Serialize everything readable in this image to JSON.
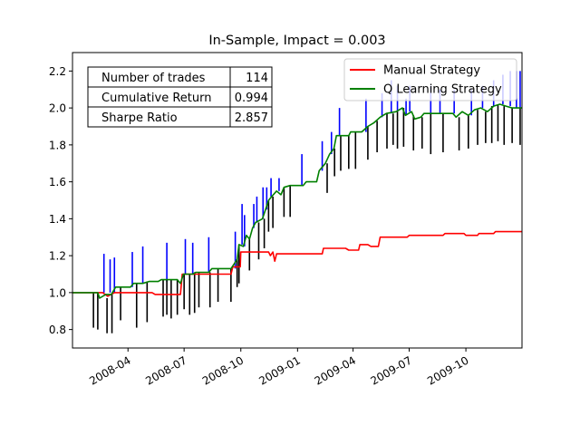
{
  "chart_data": {
    "type": "line",
    "title": "In-Sample, Impact = 0.003",
    "xlabel": "",
    "ylabel": "",
    "x_ticks": [
      "2008-04",
      "2008-07",
      "2008-10",
      "2009-01",
      "2009-04",
      "2009-07",
      "2009-10"
    ],
    "y_ticks": [
      "0.8",
      "1.0",
      "1.2",
      "1.4",
      "1.6",
      "1.8",
      "2.0",
      "2.2"
    ],
    "xlim": [
      "2008-01-02",
      "2009-12-31"
    ],
    "ylim": [
      0.7,
      2.3
    ],
    "grid": false,
    "legend_position": "upper right",
    "series": [
      {
        "name": "Manual Strategy",
        "color": "#ff0000",
        "points": [
          [
            "2008-01-02",
            1.0
          ],
          [
            "2008-02-20",
            1.0
          ],
          [
            "2008-02-28",
            0.98
          ],
          [
            "2008-03-10",
            1.0
          ],
          [
            "2008-05-10",
            1.0
          ],
          [
            "2008-05-15",
            0.99
          ],
          [
            "2008-06-25",
            0.99
          ],
          [
            "2008-06-28",
            1.1
          ],
          [
            "2008-09-15",
            1.1
          ],
          [
            "2008-09-18",
            1.14
          ],
          [
            "2008-09-30",
            1.14
          ],
          [
            "2008-10-01",
            1.22
          ],
          [
            "2008-11-15",
            1.22
          ],
          [
            "2008-11-18",
            1.2
          ],
          [
            "2008-11-22",
            1.22
          ],
          [
            "2008-11-25",
            1.17
          ],
          [
            "2008-11-28",
            1.21
          ],
          [
            "2009-02-10",
            1.21
          ],
          [
            "2009-02-12",
            1.24
          ],
          [
            "2009-03-20",
            1.24
          ],
          [
            "2009-03-25",
            1.23
          ],
          [
            "2009-04-10",
            1.23
          ],
          [
            "2009-04-12",
            1.26
          ],
          [
            "2009-04-25",
            1.26
          ],
          [
            "2009-04-30",
            1.25
          ],
          [
            "2009-05-12",
            1.25
          ],
          [
            "2009-05-15",
            1.3
          ],
          [
            "2009-06-28",
            1.3
          ],
          [
            "2009-07-01",
            1.31
          ],
          [
            "2009-08-25",
            1.31
          ],
          [
            "2009-08-28",
            1.32
          ],
          [
            "2009-09-28",
            1.32
          ],
          [
            "2009-10-01",
            1.31
          ],
          [
            "2009-10-20",
            1.31
          ],
          [
            "2009-10-22",
            1.32
          ],
          [
            "2009-11-15",
            1.32
          ],
          [
            "2009-11-18",
            1.33
          ],
          [
            "2009-12-31",
            1.33
          ]
        ]
      },
      {
        "name": "Q Learning Strategy",
        "color": "#008000",
        "points": [
          [
            "2008-01-02",
            1.0
          ],
          [
            "2008-02-12",
            1.0
          ],
          [
            "2008-02-15",
            0.97
          ],
          [
            "2008-02-25",
            0.99
          ],
          [
            "2008-03-05",
            0.99
          ],
          [
            "2008-03-12",
            1.03
          ],
          [
            "2008-04-05",
            1.03
          ],
          [
            "2008-04-10",
            1.05
          ],
          [
            "2008-04-25",
            1.05
          ],
          [
            "2008-05-05",
            1.06
          ],
          [
            "2008-05-20",
            1.06
          ],
          [
            "2008-05-25",
            1.07
          ],
          [
            "2008-06-20",
            1.07
          ],
          [
            "2008-06-25",
            1.05
          ],
          [
            "2008-06-30",
            1.1
          ],
          [
            "2008-07-15",
            1.1
          ],
          [
            "2008-07-20",
            1.11
          ],
          [
            "2008-08-10",
            1.11
          ],
          [
            "2008-08-15",
            1.13
          ],
          [
            "2008-09-15",
            1.13
          ],
          [
            "2008-09-25",
            1.18
          ],
          [
            "2008-09-28",
            1.26
          ],
          [
            "2008-10-05",
            1.25
          ],
          [
            "2008-10-10",
            1.31
          ],
          [
            "2008-10-15",
            1.29
          ],
          [
            "2008-10-20",
            1.35
          ],
          [
            "2008-10-25",
            1.38
          ],
          [
            "2008-11-05",
            1.4
          ],
          [
            "2008-11-10",
            1.45
          ],
          [
            "2008-11-15",
            1.5
          ],
          [
            "2008-11-20",
            1.52
          ],
          [
            "2008-11-28",
            1.55
          ],
          [
            "2008-12-05",
            1.53
          ],
          [
            "2008-12-10",
            1.57
          ],
          [
            "2008-12-20",
            1.58
          ],
          [
            "2009-01-10",
            1.58
          ],
          [
            "2009-01-15",
            1.6
          ],
          [
            "2009-02-01",
            1.6
          ],
          [
            "2009-02-05",
            1.66
          ],
          [
            "2009-02-15",
            1.7
          ],
          [
            "2009-02-22",
            1.75
          ],
          [
            "2009-03-01",
            1.78
          ],
          [
            "2009-03-05",
            1.85
          ],
          [
            "2009-03-25",
            1.85
          ],
          [
            "2009-03-28",
            1.87
          ],
          [
            "2009-04-15",
            1.87
          ],
          [
            "2009-04-25",
            1.9
          ],
          [
            "2009-05-05",
            1.92
          ],
          [
            "2009-05-15",
            1.95
          ],
          [
            "2009-05-25",
            1.97
          ],
          [
            "2009-06-10",
            1.98
          ],
          [
            "2009-06-20",
            2.0
          ],
          [
            "2009-06-25",
            1.96
          ],
          [
            "2009-07-05",
            1.98
          ],
          [
            "2009-07-10",
            1.94
          ],
          [
            "2009-07-20",
            1.95
          ],
          [
            "2009-07-25",
            1.97
          ],
          [
            "2009-08-10",
            1.97
          ],
          [
            "2009-09-10",
            1.97
          ],
          [
            "2009-09-15",
            1.95
          ],
          [
            "2009-09-25",
            1.98
          ],
          [
            "2009-10-05",
            1.96
          ],
          [
            "2009-10-15",
            1.99
          ],
          [
            "2009-10-25",
            2.0
          ],
          [
            "2009-11-05",
            1.98
          ],
          [
            "2009-11-15",
            2.01
          ],
          [
            "2009-11-25",
            2.02
          ],
          [
            "2009-12-05",
            2.01
          ],
          [
            "2009-12-15",
            2.0
          ],
          [
            "2009-12-31",
            2.0
          ]
        ]
      }
    ],
    "long_entries": {
      "name": "long entry markers",
      "color": "#0000ff",
      "lines": [
        [
          "2008-02-22",
          1.0,
          1.21
        ],
        [
          "2008-03-03",
          1.0,
          1.18
        ],
        [
          "2008-03-10",
          1.0,
          1.19
        ],
        [
          "2008-04-08",
          1.03,
          1.22
        ],
        [
          "2008-04-25",
          1.05,
          1.25
        ],
        [
          "2008-06-03",
          1.06,
          1.27
        ],
        [
          "2008-07-03",
          1.1,
          1.29
        ],
        [
          "2008-07-15",
          1.1,
          1.27
        ],
        [
          "2008-08-10",
          1.11,
          1.3
        ],
        [
          "2008-09-22",
          1.13,
          1.33
        ],
        [
          "2008-10-03",
          1.26,
          1.48
        ],
        [
          "2008-10-07",
          1.25,
          1.42
        ],
        [
          "2008-10-22",
          1.35,
          1.48
        ],
        [
          "2008-10-27",
          1.38,
          1.52
        ],
        [
          "2008-11-06",
          1.4,
          1.57
        ],
        [
          "2008-11-12",
          1.45,
          1.57
        ],
        [
          "2008-11-19",
          1.52,
          1.62
        ],
        [
          "2008-12-02",
          1.55,
          1.62
        ],
        [
          "2009-01-08",
          1.58,
          1.75
        ],
        [
          "2009-02-10",
          1.66,
          1.82
        ],
        [
          "2009-02-25",
          1.75,
          1.87
        ],
        [
          "2009-03-10",
          1.85,
          2.0
        ],
        [
          "2009-04-22",
          1.87,
          2.05
        ],
        [
          "2009-05-18",
          1.95,
          2.08
        ],
        [
          "2009-06-02",
          1.97,
          2.15
        ],
        [
          "2009-06-12",
          1.98,
          2.12
        ],
        [
          "2009-06-26",
          1.96,
          2.05
        ],
        [
          "2009-07-02",
          1.98,
          2.12
        ],
        [
          "2009-08-05",
          1.97,
          2.12
        ],
        [
          "2009-08-20",
          1.97,
          2.1
        ],
        [
          "2009-09-12",
          1.97,
          2.1
        ],
        [
          "2009-10-10",
          1.96,
          2.1
        ],
        [
          "2009-10-28",
          2.0,
          2.12
        ],
        [
          "2009-11-15",
          2.01,
          2.15
        ],
        [
          "2009-11-30",
          2.02,
          2.18
        ],
        [
          "2009-12-12",
          2.01,
          2.2
        ],
        [
          "2009-12-22",
          2.0,
          2.2
        ],
        [
          "2009-12-28",
          2.0,
          2.2
        ]
      ]
    },
    "short_entries": {
      "name": "short entry markers",
      "color": "#000000",
      "lines": [
        [
          "2008-02-05",
          1.0,
          0.81
        ],
        [
          "2008-02-12",
          1.0,
          0.8
        ],
        [
          "2008-02-27",
          0.97,
          0.78
        ],
        [
          "2008-03-06",
          0.99,
          0.78
        ],
        [
          "2008-03-20",
          1.03,
          0.85
        ],
        [
          "2008-04-15",
          1.05,
          0.81
        ],
        [
          "2008-05-02",
          1.06,
          0.84
        ],
        [
          "2008-05-28",
          1.07,
          0.87
        ],
        [
          "2008-06-03",
          1.07,
          0.88
        ],
        [
          "2008-06-10",
          1.07,
          0.86
        ],
        [
          "2008-06-20",
          1.07,
          0.88
        ],
        [
          "2008-07-01",
          1.1,
          0.91
        ],
        [
          "2008-07-10",
          1.1,
          0.88
        ],
        [
          "2008-07-18",
          1.11,
          0.89
        ],
        [
          "2008-07-25",
          1.11,
          0.92
        ],
        [
          "2008-08-12",
          1.11,
          0.92
        ],
        [
          "2008-08-25",
          1.13,
          0.95
        ],
        [
          "2008-09-15",
          1.13,
          0.95
        ],
        [
          "2008-09-25",
          1.18,
          1.03
        ],
        [
          "2008-09-28",
          1.26,
          1.05
        ],
        [
          "2008-10-15",
          1.29,
          1.12
        ],
        [
          "2008-10-30",
          1.38,
          1.18
        ],
        [
          "2008-11-08",
          1.4,
          1.24
        ],
        [
          "2008-11-15",
          1.5,
          1.33
        ],
        [
          "2008-11-22",
          1.52,
          1.35
        ],
        [
          "2008-12-10",
          1.57,
          1.41
        ],
        [
          "2008-12-20",
          1.58,
          1.41
        ],
        [
          "2009-02-18",
          1.7,
          1.54
        ],
        [
          "2009-03-02",
          1.78,
          1.63
        ],
        [
          "2009-03-12",
          1.85,
          1.66
        ],
        [
          "2009-03-25",
          1.85,
          1.67
        ],
        [
          "2009-04-05",
          1.87,
          1.67
        ],
        [
          "2009-04-25",
          1.9,
          1.72
        ],
        [
          "2009-05-10",
          1.93,
          1.76
        ],
        [
          "2009-05-26",
          1.97,
          1.78
        ],
        [
          "2009-06-05",
          1.97,
          1.8
        ],
        [
          "2009-06-12",
          1.98,
          1.78
        ],
        [
          "2009-06-22",
          2.0,
          1.79
        ],
        [
          "2009-07-08",
          1.96,
          1.77
        ],
        [
          "2009-07-22",
          1.95,
          1.78
        ],
        [
          "2009-08-05",
          1.97,
          1.75
        ],
        [
          "2009-08-25",
          1.97,
          1.76
        ],
        [
          "2009-09-20",
          1.95,
          1.77
        ],
        [
          "2009-10-05",
          1.96,
          1.78
        ],
        [
          "2009-10-20",
          1.99,
          1.8
        ],
        [
          "2009-11-02",
          1.98,
          1.81
        ],
        [
          "2009-11-12",
          2.01,
          1.81
        ],
        [
          "2009-11-22",
          2.02,
          1.82
        ],
        [
          "2009-12-02",
          2.01,
          1.8
        ],
        [
          "2009-12-15",
          2.0,
          1.81
        ],
        [
          "2009-12-28",
          2.0,
          1.8
        ]
      ]
    },
    "stats_table": [
      [
        "Number of trades",
        "114"
      ],
      [
        "Cumulative Return",
        "0.994"
      ],
      [
        "Sharpe Ratio",
        "2.857"
      ]
    ]
  }
}
